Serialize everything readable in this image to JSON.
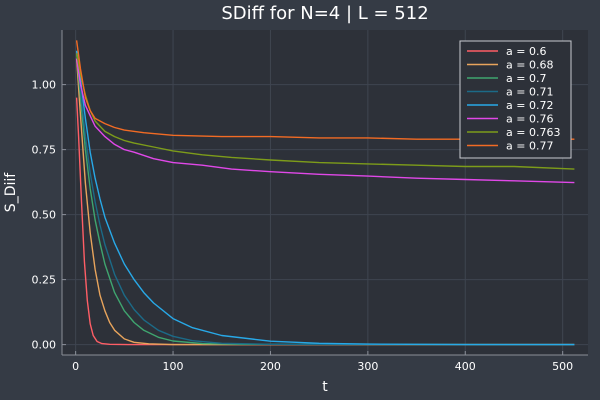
{
  "chart_data": {
    "type": "line",
    "title": "SDiff for N=4 | L = 512",
    "xlabel": "t",
    "ylabel": "S_Diif",
    "xlim": [
      -14,
      526
    ],
    "ylim": [
      -0.04,
      1.21
    ],
    "xticks": [
      0,
      100,
      200,
      300,
      400,
      500
    ],
    "yticks": [
      0.0,
      0.25,
      0.5,
      0.75,
      1.0
    ],
    "ytick_labels": [
      "0.00",
      "0.25",
      "0.50",
      "0.75",
      "1.00"
    ],
    "grid": true,
    "legend_position": "top-right",
    "colors": {
      "background": "#353b45",
      "plot_background": "#2d3139",
      "grid": "#3f4550",
      "axis": "#8a8f98",
      "text": "#ffffff"
    },
    "series": [
      {
        "name": "a = 0.6",
        "color": "#ff5e66",
        "points": [
          [
            1,
            0.95
          ],
          [
            3,
            0.8
          ],
          [
            6,
            0.55
          ],
          [
            9,
            0.32
          ],
          [
            12,
            0.17
          ],
          [
            15,
            0.08
          ],
          [
            18,
            0.035
          ],
          [
            22,
            0.012
          ],
          [
            27,
            0.004
          ],
          [
            35,
            0.001
          ],
          [
            60,
            0.0
          ],
          [
            512,
            0.0
          ]
        ]
      },
      {
        "name": "a = 0.68",
        "color": "#e8a45c",
        "points": [
          [
            1,
            1.1
          ],
          [
            5,
            0.88
          ],
          [
            10,
            0.62
          ],
          [
            15,
            0.43
          ],
          [
            20,
            0.29
          ],
          [
            25,
            0.19
          ],
          [
            30,
            0.13
          ],
          [
            35,
            0.085
          ],
          [
            40,
            0.055
          ],
          [
            50,
            0.022
          ],
          [
            60,
            0.009
          ],
          [
            75,
            0.003
          ],
          [
            100,
            0.0
          ],
          [
            512,
            0.0
          ]
        ]
      },
      {
        "name": "a = 0.7",
        "color": "#3fa56f",
        "points": [
          [
            1,
            1.12
          ],
          [
            5,
            0.95
          ],
          [
            10,
            0.75
          ],
          [
            15,
            0.6
          ],
          [
            20,
            0.48
          ],
          [
            25,
            0.39
          ],
          [
            30,
            0.31
          ],
          [
            40,
            0.2
          ],
          [
            50,
            0.13
          ],
          [
            60,
            0.085
          ],
          [
            70,
            0.055
          ],
          [
            85,
            0.028
          ],
          [
            100,
            0.014
          ],
          [
            130,
            0.004
          ],
          [
            170,
            0.001
          ],
          [
            512,
            0.0
          ]
        ]
      },
      {
        "name": "a = 0.71",
        "color": "#1c6a87",
        "points": [
          [
            1,
            1.13
          ],
          [
            5,
            0.98
          ],
          [
            10,
            0.8
          ],
          [
            15,
            0.66
          ],
          [
            20,
            0.55
          ],
          [
            25,
            0.46
          ],
          [
            30,
            0.385
          ],
          [
            40,
            0.27
          ],
          [
            50,
            0.19
          ],
          [
            60,
            0.135
          ],
          [
            70,
            0.095
          ],
          [
            85,
            0.055
          ],
          [
            100,
            0.032
          ],
          [
            120,
            0.015
          ],
          [
            150,
            0.005
          ],
          [
            200,
            0.001
          ],
          [
            512,
            0.0
          ]
        ]
      },
      {
        "name": "a = 0.72",
        "color": "#28a9e8",
        "points": [
          [
            1,
            1.13
          ],
          [
            5,
            1.02
          ],
          [
            10,
            0.87
          ],
          [
            15,
            0.74
          ],
          [
            20,
            0.64
          ],
          [
            25,
            0.56
          ],
          [
            30,
            0.49
          ],
          [
            40,
            0.39
          ],
          [
            50,
            0.31
          ],
          [
            60,
            0.25
          ],
          [
            70,
            0.2
          ],
          [
            80,
            0.16
          ],
          [
            100,
            0.1
          ],
          [
            120,
            0.065
          ],
          [
            150,
            0.035
          ],
          [
            200,
            0.013
          ],
          [
            250,
            0.005
          ],
          [
            300,
            0.002
          ],
          [
            400,
            0.0
          ],
          [
            512,
            0.0
          ]
        ]
      },
      {
        "name": "a = 0.76",
        "color": "#e048e8",
        "points": [
          [
            1,
            1.1
          ],
          [
            5,
            1.0
          ],
          [
            10,
            0.92
          ],
          [
            15,
            0.88
          ],
          [
            20,
            0.84
          ],
          [
            30,
            0.8
          ],
          [
            40,
            0.77
          ],
          [
            50,
            0.75
          ],
          [
            60,
            0.74
          ],
          [
            80,
            0.715
          ],
          [
            100,
            0.7
          ],
          [
            130,
            0.69
          ],
          [
            160,
            0.675
          ],
          [
            200,
            0.665
          ],
          [
            250,
            0.655
          ],
          [
            300,
            0.648
          ],
          [
            350,
            0.64
          ],
          [
            400,
            0.635
          ],
          [
            450,
            0.63
          ],
          [
            512,
            0.623
          ]
        ]
      },
      {
        "name": "a = 0.763",
        "color": "#7d9c1a",
        "points": [
          [
            1,
            1.12
          ],
          [
            5,
            1.04
          ],
          [
            10,
            0.96
          ],
          [
            15,
            0.9
          ],
          [
            20,
            0.86
          ],
          [
            30,
            0.82
          ],
          [
            40,
            0.8
          ],
          [
            50,
            0.785
          ],
          [
            60,
            0.775
          ],
          [
            80,
            0.76
          ],
          [
            100,
            0.745
          ],
          [
            130,
            0.73
          ],
          [
            160,
            0.72
          ],
          [
            200,
            0.71
          ],
          [
            250,
            0.7
          ],
          [
            300,
            0.695
          ],
          [
            350,
            0.69
          ],
          [
            400,
            0.685
          ],
          [
            450,
            0.685
          ],
          [
            512,
            0.675
          ]
        ]
      },
      {
        "name": "a = 0.77",
        "color": "#f26b24",
        "points": [
          [
            1,
            1.17
          ],
          [
            5,
            1.06
          ],
          [
            10,
            0.95
          ],
          [
            15,
            0.9
          ],
          [
            20,
            0.87
          ],
          [
            30,
            0.85
          ],
          [
            40,
            0.835
          ],
          [
            50,
            0.825
          ],
          [
            70,
            0.815
          ],
          [
            100,
            0.805
          ],
          [
            150,
            0.8
          ],
          [
            200,
            0.8
          ],
          [
            250,
            0.795
          ],
          [
            300,
            0.795
          ],
          [
            350,
            0.79
          ],
          [
            400,
            0.79
          ],
          [
            450,
            0.79
          ],
          [
            512,
            0.79
          ]
        ]
      }
    ]
  }
}
